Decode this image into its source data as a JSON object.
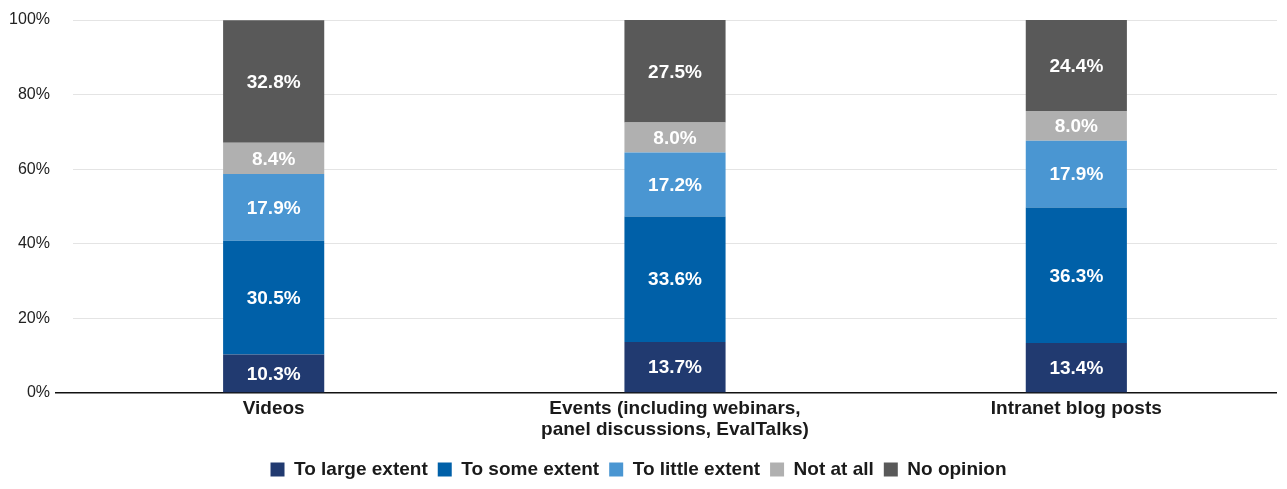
{
  "chart_data": {
    "type": "bar",
    "categories": [
      "Videos",
      "Events (including webinars, panel discussions, EvalTalks)",
      "Intranet blog posts"
    ],
    "stacked": true,
    "series": [
      {
        "name": "To large extent",
        "color": "#213a70",
        "values": [
          10.3,
          13.7,
          13.4
        ],
        "value_labels": [
          "10.3%",
          "13.7%",
          "13.4%"
        ]
      },
      {
        "name": "To some extent",
        "color": "#0060a8",
        "values": [
          30.5,
          33.6,
          36.3
        ],
        "value_labels": [
          "30.5%",
          "33.6%",
          "36.3%"
        ]
      },
      {
        "name": "To little extent",
        "color": "#4a96d2",
        "values": [
          17.9,
          17.2,
          17.9
        ],
        "value_labels": [
          "17.9%",
          "17.2%",
          "17.9%"
        ]
      },
      {
        "name": "Not at all",
        "color": "#b0b0b0",
        "values": [
          8.4,
          8.0,
          8.0
        ],
        "value_labels": [
          "8.4%",
          "8.0%",
          "8.0%"
        ]
      },
      {
        "name": "No opinion",
        "color": "#595959",
        "values": [
          32.8,
          27.5,
          24.4
        ],
        "value_labels": [
          "32.8%",
          "27.5%",
          "24.4%"
        ]
      }
    ],
    "ylim": [
      0,
      100
    ],
    "yticks": [
      {
        "value": 0,
        "label": "0%"
      },
      {
        "value": 20,
        "label": "20%"
      },
      {
        "value": 40,
        "label": "40%"
      },
      {
        "value": 60,
        "label": "60%"
      },
      {
        "value": 80,
        "label": "80%"
      },
      {
        "value": 100,
        "label": "100%"
      }
    ],
    "grid": "y",
    "legend": "bottom"
  }
}
